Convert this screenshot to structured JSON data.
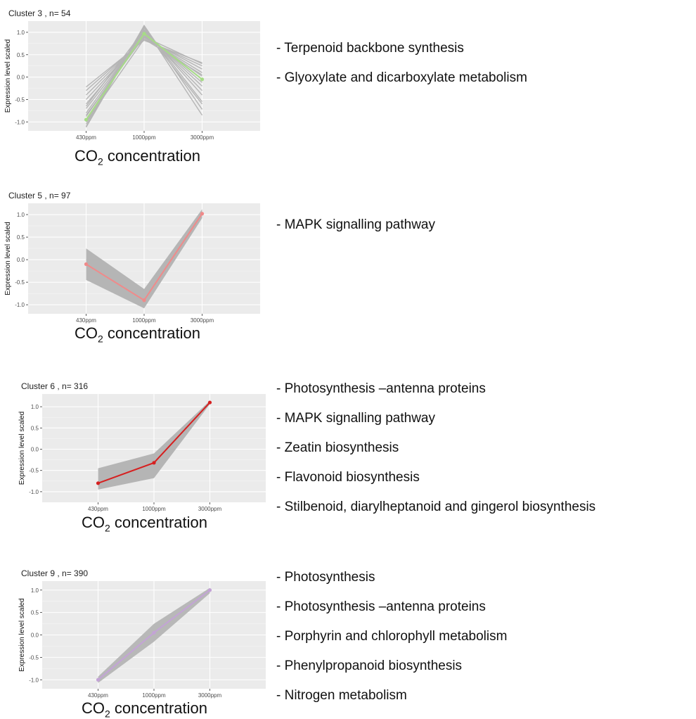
{
  "chart_data": [
    {
      "type": "line",
      "title": "Cluster 3 , n= 54",
      "xlabel_main": "CO",
      "xlabel_sub": "2",
      "xlabel_rest": " concentration",
      "ylabel": "Expression level scaled",
      "categories": [
        "430ppm",
        "1000ppm",
        "3000ppm"
      ],
      "yticks": [
        "1.0",
        "0.5",
        "0.0",
        "-0.5",
        "-1.0"
      ],
      "ytick_values": [
        1.0,
        0.5,
        0.0,
        -0.5,
        -1.0
      ],
      "ylim": [
        -1.2,
        1.25
      ],
      "grid": true,
      "background": "#ebebeb",
      "band_color": "#b5b5b5",
      "series_color": "#a6dc86",
      "series": [
        {
          "values": [
            -0.95,
            0.97,
            -0.05
          ]
        }
      ],
      "gray_lines": [
        [
          -0.22,
          0.82,
          0.32
        ],
        [
          -0.3,
          0.85,
          0.25
        ],
        [
          -0.4,
          0.88,
          0.18
        ],
        [
          -0.5,
          0.9,
          0.1
        ],
        [
          -0.6,
          0.93,
          0.02
        ],
        [
          -0.7,
          0.95,
          -0.05
        ],
        [
          -0.8,
          0.98,
          -0.12
        ],
        [
          -0.88,
          1.0,
          -0.2
        ],
        [
          -0.95,
          1.03,
          -0.3
        ],
        [
          -1.0,
          1.06,
          -0.4
        ],
        [
          -1.05,
          1.1,
          -0.55
        ],
        [
          -1.1,
          1.15,
          -0.72
        ],
        [
          -1.12,
          1.12,
          -0.85
        ],
        [
          -0.85,
          0.9,
          0.3
        ],
        [
          -0.65,
          1.05,
          -0.6
        ],
        [
          -1.0,
          0.85,
          0.05
        ]
      ],
      "band": null,
      "pathways": [
        "- Terpenoid backbone synthesis",
        "- Glyoxylate and dicarboxylate metabolism"
      ]
    },
    {
      "type": "line",
      "title": "Cluster 5 , n= 97",
      "xlabel_main": "CO",
      "xlabel_sub": "2",
      "xlabel_rest": " concentration",
      "ylabel": "Expression level scaled",
      "categories": [
        "430ppm",
        "1000ppm",
        "3000ppm"
      ],
      "yticks": [
        "1.0",
        "0.5",
        "0.0",
        "-0.5",
        "-1.0"
      ],
      "ytick_values": [
        1.0,
        0.5,
        0.0,
        -0.5,
        -1.0
      ],
      "ylim": [
        -1.2,
        1.25
      ],
      "grid": true,
      "background": "#ebebeb",
      "band_color": "#b5b5b5",
      "series_color": "#f08a8a",
      "series": [
        {
          "values": [
            -0.1,
            -0.9,
            1.02
          ]
        }
      ],
      "gray_lines": [],
      "band": {
        "upper": [
          0.25,
          -0.65,
          1.12
        ],
        "lower": [
          -0.45,
          -1.08,
          0.92
        ]
      },
      "pathways": [
        "- MAPK signalling pathway"
      ]
    },
    {
      "type": "line",
      "title": "Cluster 6 , n= 316",
      "xlabel_main": "CO",
      "xlabel_sub": "2",
      "xlabel_rest": " concentration",
      "ylabel": "Expression level scaled",
      "categories": [
        "430ppm",
        "1000ppm",
        "3000ppm"
      ],
      "yticks": [
        "1.0",
        "0.5",
        "0.0",
        "-0.5",
        "-1.0"
      ],
      "ytick_values": [
        1.0,
        0.5,
        0.0,
        -0.5,
        -1.0
      ],
      "ylim": [
        -1.25,
        1.3
      ],
      "grid": true,
      "background": "#ebebeb",
      "band_color": "#b5b5b5",
      "series_color": "#d62020",
      "series": [
        {
          "values": [
            -0.8,
            -0.32,
            1.1
          ]
        }
      ],
      "gray_lines": [],
      "band": {
        "upper": [
          -0.45,
          -0.1,
          1.14
        ],
        "lower": [
          -0.95,
          -0.68,
          1.06
        ]
      },
      "pathways": [
        "- Photosynthesis –antenna proteins",
        "- MAPK signalling pathway",
        "- Zeatin biosynthesis",
        "- Flavonoid biosynthesis",
        "- Stilbenoid, diarylheptanoid and gingerol biosynthesis"
      ]
    },
    {
      "type": "line",
      "title": "Cluster 9 , n= 390",
      "xlabel_main": "CO",
      "xlabel_sub": "2",
      "xlabel_rest": " concentration",
      "ylabel": "Expression level scaled",
      "categories": [
        "430ppm",
        "1000ppm",
        "3000ppm"
      ],
      "yticks": [
        "1.0",
        "0.5",
        "0.0",
        "-0.5",
        "-1.0"
      ],
      "ytick_values": [
        1.0,
        0.5,
        0.0,
        -0.5,
        -1.0
      ],
      "ylim": [
        -1.2,
        1.2
      ],
      "grid": true,
      "background": "#ebebeb",
      "band_color": "#b8b8b8",
      "series_color": "#c3a3d6",
      "series": [
        {
          "values": [
            -1.0,
            0.05,
            1.0
          ]
        }
      ],
      "gray_lines": [],
      "band": {
        "upper": [
          -0.93,
          0.25,
          1.05
        ],
        "lower": [
          -1.07,
          -0.15,
          0.93
        ]
      },
      "pathways": [
        "- Photosynthesis",
        "- Photosynthesis –antenna proteins",
        "- Porphyrin and chlorophyll metabolism",
        "- Phenylpropanoid biosynthesis",
        "- Nitrogen metabolism"
      ]
    }
  ]
}
